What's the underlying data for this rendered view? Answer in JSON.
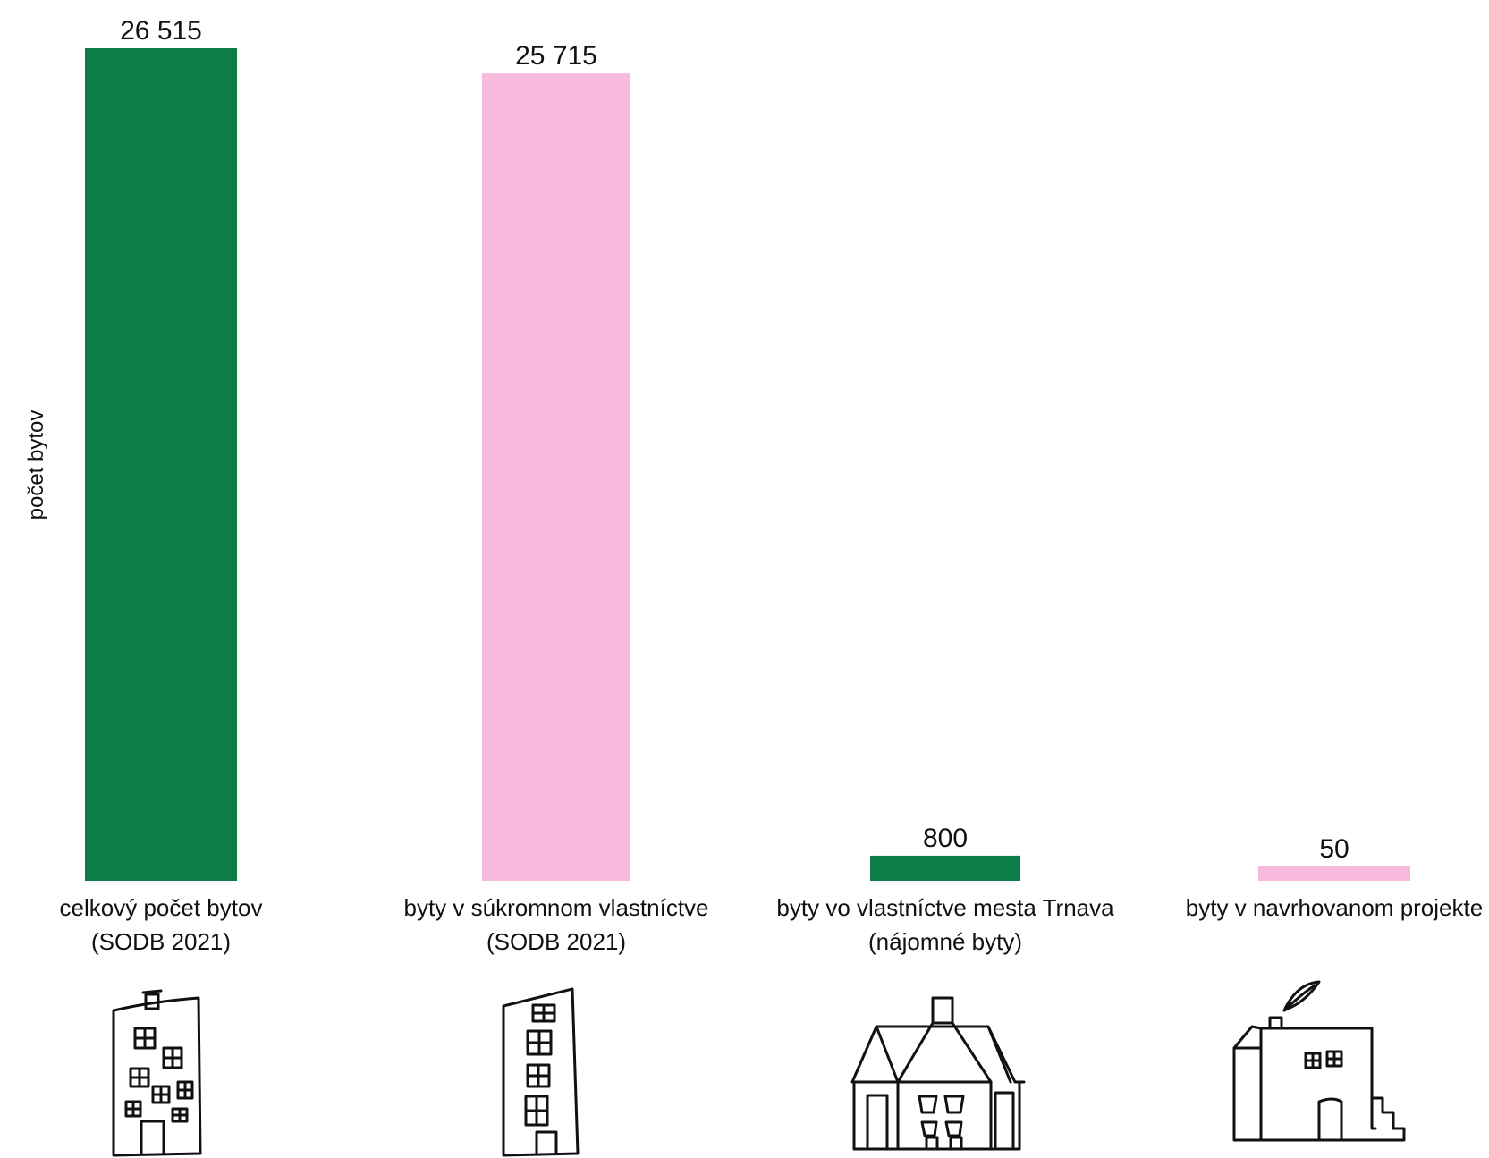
{
  "chart_data": {
    "type": "bar",
    "ylabel": "počet bytov",
    "categories": [
      [
        "celkový počet bytov",
        "(SODB 2021)"
      ],
      [
        "byty v súkromnom vlastníctve",
        "(SODB 2021)"
      ],
      [
        "byty vo vlastníctve mesta Trnava",
        "(nájomné byty)"
      ],
      [
        "byty v navrhovanom projekte"
      ]
    ],
    "values": [
      26515,
      25715,
      800,
      50
    ],
    "value_labels": [
      "26 515",
      "25 715",
      "800",
      "50"
    ],
    "colors": [
      "#0c7d46",
      "#f8b9df",
      "#0c7d46",
      "#f8b9df"
    ],
    "icons": [
      "tall-apartment-building-drawing-icon",
      "narrow-tower-building-drawing-icon",
      "gabled-house-drawing-icon",
      "small-house-drawing-icon"
    ],
    "ylim": [
      0,
      26515
    ],
    "grid": false,
    "legend": "none"
  }
}
